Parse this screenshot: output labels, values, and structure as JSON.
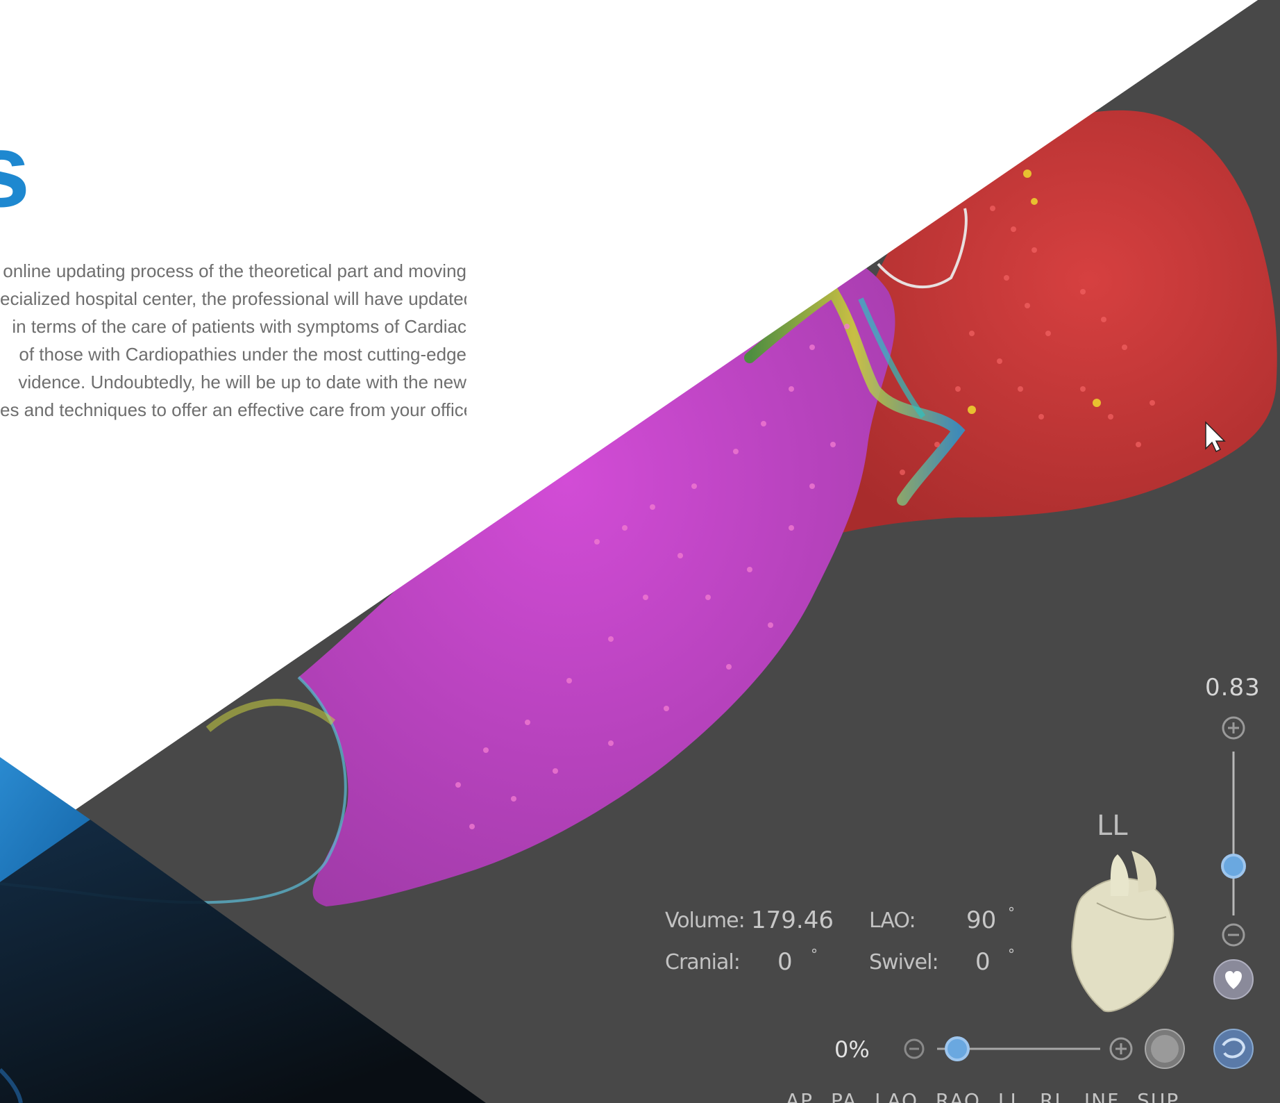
{
  "heading": {
    "visible_text": "s"
  },
  "intro": {
    "lines": [
      "online updating process of the theoretical part and moving",
      "ecialized hospital center, the professional will have updated",
      "in terms of the care of patients with symptoms of Cardiac",
      "of those with Cardiopathies under the most cutting-edge",
      "vidence. Undoubtedly, he will be up to date with the new",
      "es and techniques to offer an effective care from your office."
    ]
  },
  "viewer": {
    "zoom": {
      "value_label": "0.83",
      "level": 0.83,
      "plus_icon": "zoom-in-icon",
      "minus_icon": "zoom-out-icon"
    },
    "orientation_label": "LL",
    "volume": {
      "label": "Volume:",
      "value": "179.46"
    },
    "lao": {
      "label": "LAO:",
      "value": "90",
      "unit": "°"
    },
    "cranial": {
      "label": "Cranial:",
      "value": "0",
      "unit": "°"
    },
    "swivel": {
      "label": "Swivel:",
      "value": "0",
      "unit": "°"
    },
    "opacity": {
      "label": "0%",
      "level": 0
    },
    "view_buttons": "AP  PA  LAO  RAO  LL  RL  INF  SUP",
    "colors": {
      "panel": "#4a4a4a",
      "mesh_purple": "#c642c6",
      "mesh_red": "#c83a3a",
      "accent_blue": "#1e88d0",
      "dark_triangle": "#0a1a2a"
    }
  }
}
